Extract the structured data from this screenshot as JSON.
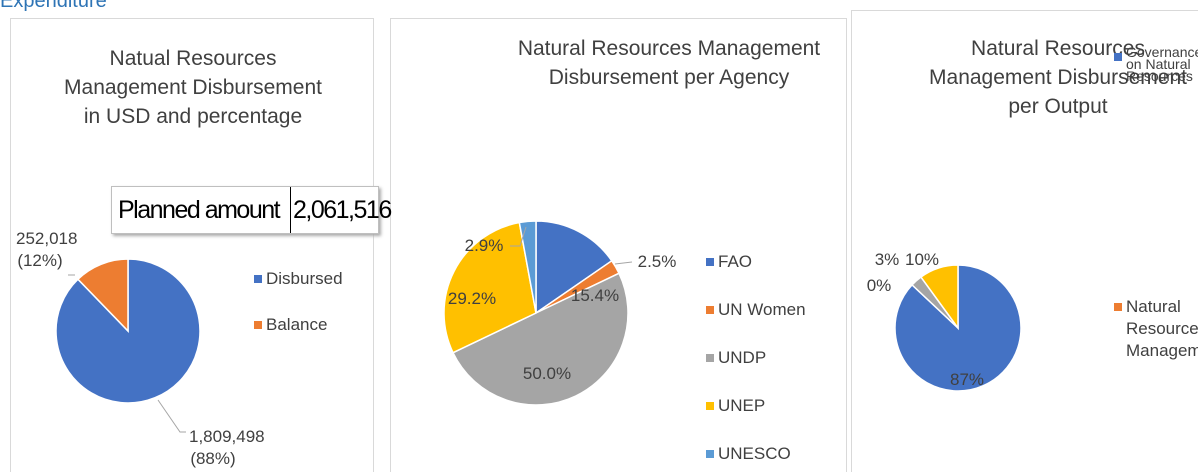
{
  "header": {
    "title": "Expenditure"
  },
  "chart_data": [
    {
      "type": "pie",
      "title": "Natual Resources Management Disbursement in USD and percentage",
      "categories": [
        "Disbursed",
        "Balance"
      ],
      "values": [
        1809498,
        252018
      ],
      "value_labels": [
        "1,809,498 (88%)",
        "252,018 (12%)"
      ],
      "colors": [
        "#4472c4",
        "#ed7d31"
      ],
      "table": {
        "label": "Planned amount",
        "value": "2,061,516"
      }
    },
    {
      "type": "pie",
      "title": "Natural Resources Management Disbursement per Agency",
      "categories": [
        "FAO",
        "UN Women",
        "UNDP",
        "UNEP",
        "UNESCO"
      ],
      "values": [
        15.4,
        2.5,
        50.0,
        29.2,
        2.9
      ],
      "value_labels": [
        "15.4%",
        "2.5%",
        "50.0%",
        "29.2%",
        "2.9%"
      ],
      "colors": [
        "#4472c4",
        "#ed7d31",
        "#a5a5a5",
        "#ffc000",
        "#5b9bd5"
      ]
    },
    {
      "type": "pie",
      "title": "Natural Resources Management Disbursement per Output",
      "categories": [
        "Governance on Natural Resources",
        "Natural Resource Management",
        null,
        null
      ],
      "values": [
        87,
        0,
        3,
        10
      ],
      "value_labels": [
        "87%",
        "0%",
        "3%",
        "10%"
      ],
      "colors": [
        "#4472c4",
        "#ed7d31",
        "#a5a5a5",
        "#ffc000"
      ]
    }
  ]
}
